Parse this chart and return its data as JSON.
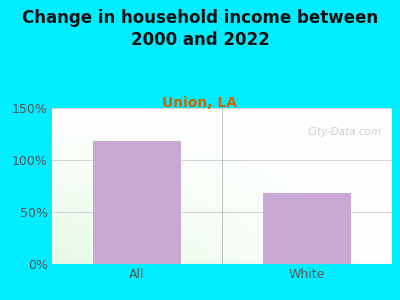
{
  "title": "Change in household income between\n2000 and 2022",
  "subtitle": "Union, LA",
  "categories": [
    "All",
    "White"
  ],
  "values": [
    118,
    68
  ],
  "bar_color": "#c9a8d4",
  "title_fontsize": 12,
  "subtitle_fontsize": 10,
  "subtitle_color": "#cc6600",
  "title_color": "#111111",
  "tick_label_color": "#555555",
  "ylim": [
    0,
    150
  ],
  "yticks": [
    0,
    50,
    100,
    150
  ],
  "ytick_labels": [
    "0%",
    "50%",
    "100%",
    "150%"
  ],
  "bg_outer_color": "#00eeff",
  "watermark": "City-Data.com"
}
